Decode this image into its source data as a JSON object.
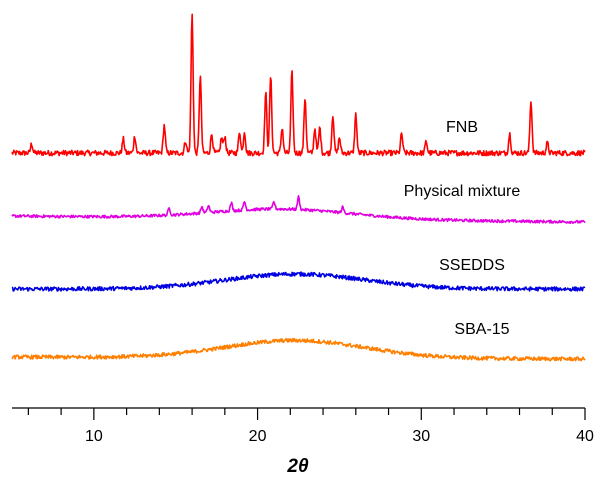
{
  "chart_data": {
    "type": "line",
    "title": "",
    "xlabel": "2θ",
    "ylabel": "",
    "xlim": [
      5,
      40
    ],
    "x_ticks": [
      10,
      20,
      30,
      40
    ],
    "x_tick_labels": [
      "10",
      "20",
      "30",
      "40"
    ],
    "grid": false,
    "legend": "none",
    "series": [
      {
        "name": "FNB",
        "color": "#ff0000",
        "baseline": 0,
        "noise": 0.35,
        "peaks": [
          [
            6.2,
            1.2
          ],
          [
            11.8,
            1.8
          ],
          [
            12.5,
            2.2
          ],
          [
            14.3,
            3.6
          ],
          [
            15.6,
            1.6
          ],
          [
            16.0,
            18.0
          ],
          [
            16.5,
            10.0
          ],
          [
            17.2,
            2.5
          ],
          [
            17.8,
            2.0
          ],
          [
            18.0,
            2.2
          ],
          [
            18.9,
            2.8
          ],
          [
            19.2,
            2.8
          ],
          [
            20.5,
            7.8
          ],
          [
            20.8,
            10.0
          ],
          [
            21.5,
            3.3
          ],
          [
            22.1,
            10.5
          ],
          [
            22.9,
            7.2
          ],
          [
            23.5,
            3.2
          ],
          [
            23.8,
            3.3
          ],
          [
            24.6,
            5.0
          ],
          [
            25.0,
            2.0
          ],
          [
            26.0,
            5.0
          ],
          [
            28.8,
            2.5
          ],
          [
            30.3,
            1.5
          ],
          [
            35.4,
            2.5
          ],
          [
            36.7,
            6.8
          ],
          [
            37.7,
            1.3
          ]
        ]
      },
      {
        "name": "Physical mixture",
        "color": "#e000e0",
        "baseline": 0,
        "noise": 0.2,
        "hump_center": 21.5,
        "hump_height": 1.4,
        "peaks": [
          [
            14.6,
            1.0
          ],
          [
            16.6,
            0.9
          ],
          [
            17.0,
            1.0
          ],
          [
            18.4,
            1.1
          ],
          [
            19.2,
            1.2
          ],
          [
            21.0,
            1.0
          ],
          [
            22.5,
            1.8
          ],
          [
            25.2,
            0.8
          ]
        ]
      },
      {
        "name": "SSEDDS",
        "color": "#0000e0",
        "baseline": 0,
        "noise": 0.3,
        "hump_center": 22.3,
        "hump_height": 2.2,
        "peaks": []
      },
      {
        "name": "SBA-15",
        "color": "#ff7f00",
        "baseline": 0,
        "noise": 0.35,
        "hump_center": 22.3,
        "hump_height": 3.2,
        "peaks": []
      }
    ]
  }
}
